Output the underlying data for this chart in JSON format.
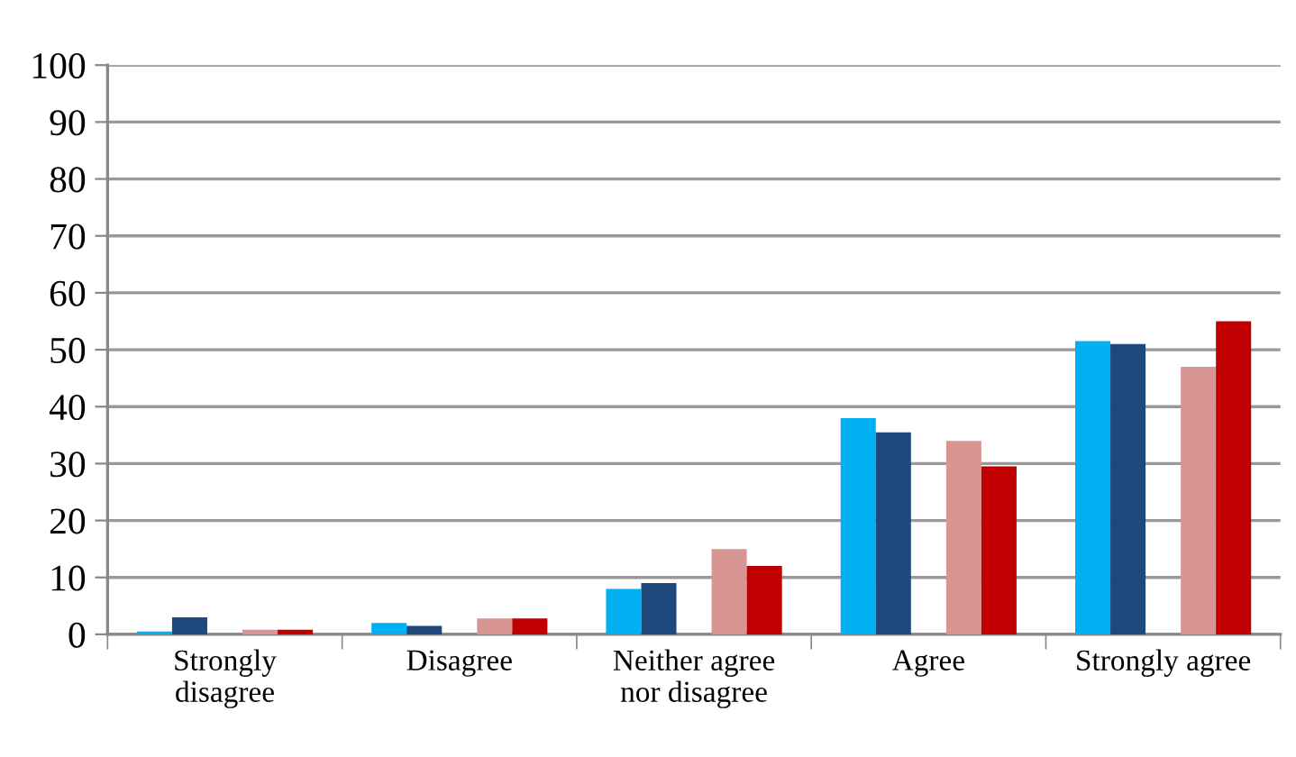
{
  "chart_data": {
    "type": "bar",
    "categories": [
      "Strongly\ndisagree",
      "Disagree",
      "Neither agree\nnor disagree",
      "Agree",
      "Strongly agree"
    ],
    "series": [
      {
        "color": "#00b0f0",
        "values": [
          0.5,
          2,
          8,
          38,
          51.5
        ]
      },
      {
        "color": "#1f497d",
        "values": [
          3,
          1.5,
          9,
          35.5,
          51
        ]
      },
      {
        "color": "#d99594",
        "values": [
          0.8,
          2.8,
          15,
          34,
          47
        ]
      },
      {
        "color": "#c00000",
        "values": [
          0.8,
          2.8,
          12,
          29.5,
          55
        ]
      }
    ],
    "ylim": [
      0,
      100
    ],
    "yticks": [
      0,
      10,
      20,
      30,
      40,
      50,
      60,
      70,
      80,
      90,
      100
    ],
    "grid": "y",
    "legend": false
  }
}
